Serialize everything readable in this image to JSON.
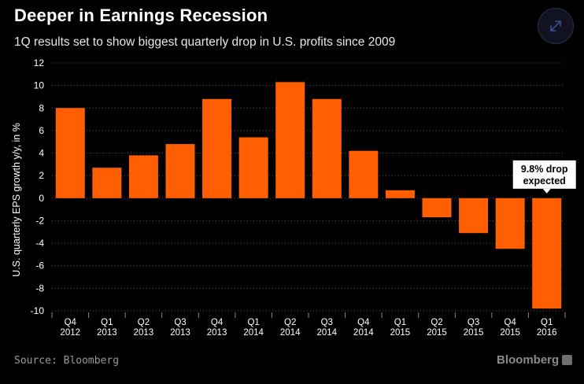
{
  "header": {
    "title": "Deeper in Earnings Recession",
    "subtitle": "1Q results set to show biggest quarterly drop in U.S. profits since 2009"
  },
  "footer": {
    "source": "Source: Bloomberg",
    "brand": "Bloomberg"
  },
  "icons": {
    "expand": "expand-arrows-icon",
    "brand_mark": "bloomberg-chart-icon"
  },
  "colors": {
    "background": "#000000",
    "bar": "#ff5f00",
    "grid": "#555555",
    "annotation_bg": "#ffffff",
    "annotation_text": "#000000"
  },
  "chart_data": {
    "type": "bar",
    "title": "Deeper in Earnings Recession",
    "subtitle": "1Q results set to show biggest quarterly drop in U.S. profits since 2009",
    "xlabel": "",
    "ylabel": "U.S. quarterly EPS growth y/y, in %",
    "ylim": [
      -10,
      12
    ],
    "yticks": [
      12,
      10,
      8,
      6,
      4,
      2,
      0,
      -2,
      -4,
      -6,
      -8,
      -10
    ],
    "grid": true,
    "categories": [
      {
        "quarter": "Q4",
        "year": "2012"
      },
      {
        "quarter": "Q1",
        "year": "2013"
      },
      {
        "quarter": "Q2",
        "year": "2013"
      },
      {
        "quarter": "Q3",
        "year": "2013"
      },
      {
        "quarter": "Q4",
        "year": "2013"
      },
      {
        "quarter": "Q1",
        "year": "2014"
      },
      {
        "quarter": "Q2",
        "year": "2014"
      },
      {
        "quarter": "Q3",
        "year": "2014"
      },
      {
        "quarter": "Q4",
        "year": "2014"
      },
      {
        "quarter": "Q1",
        "year": "2015"
      },
      {
        "quarter": "Q2",
        "year": "2015"
      },
      {
        "quarter": "Q3",
        "year": "2015"
      },
      {
        "quarter": "Q4",
        "year": "2015"
      },
      {
        "quarter": "Q1",
        "year": "2016"
      }
    ],
    "values": [
      8.0,
      2.7,
      3.8,
      4.8,
      8.8,
      5.4,
      10.3,
      8.8,
      4.2,
      0.7,
      -1.7,
      -3.1,
      -4.5,
      -9.8
    ],
    "annotation": {
      "index": 13,
      "lines": [
        "9.8% drop",
        "expected"
      ]
    }
  }
}
